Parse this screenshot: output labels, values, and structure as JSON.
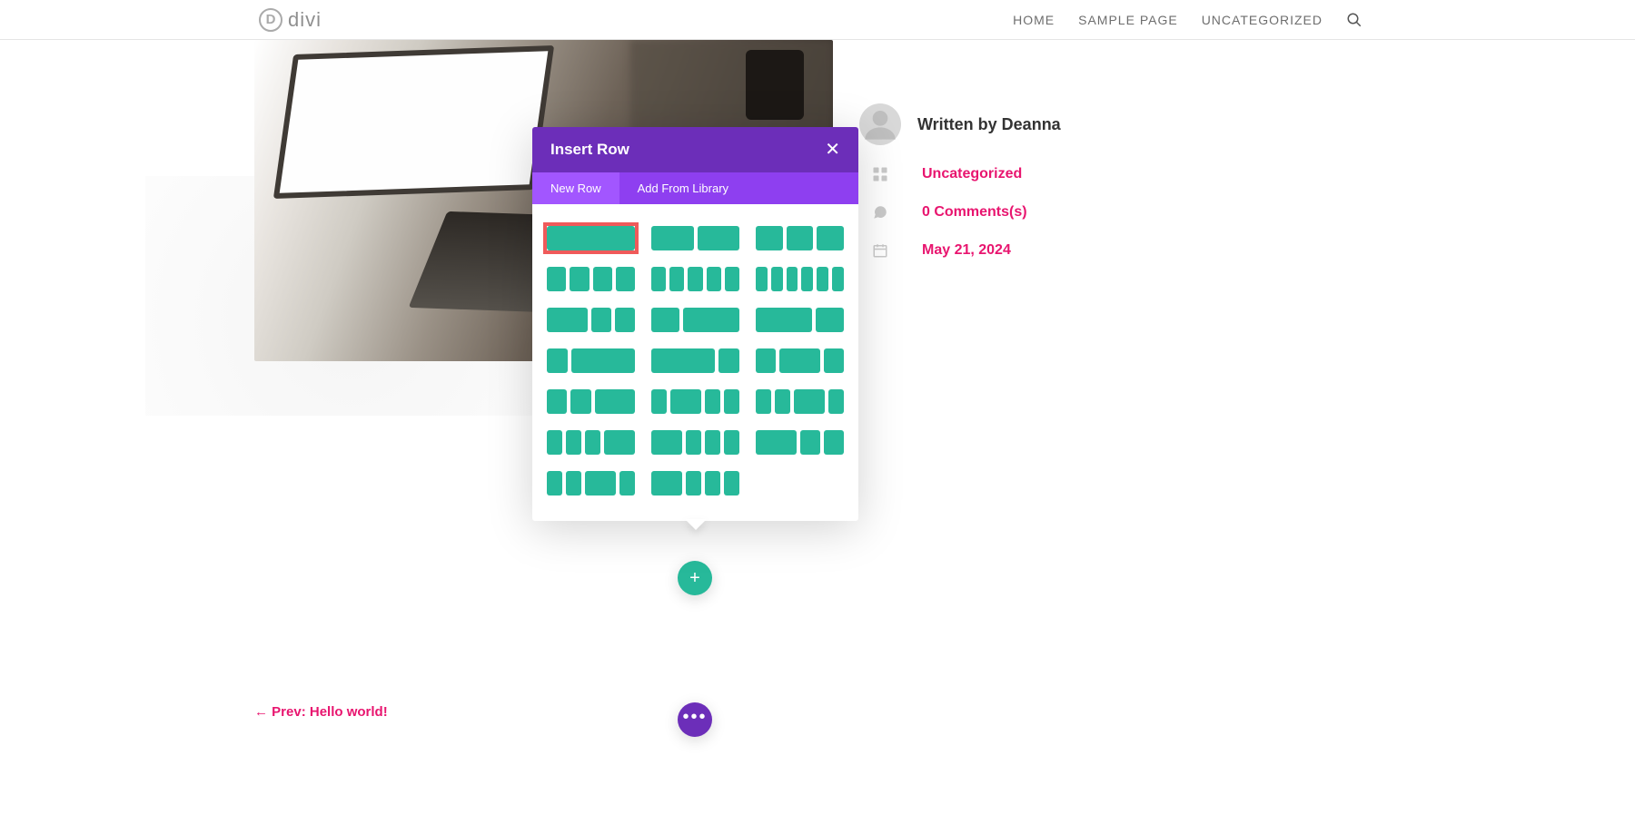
{
  "brand": {
    "icon_letter": "D",
    "name": "divi"
  },
  "nav": {
    "items": [
      {
        "label": "HOME"
      },
      {
        "label": "SAMPLE PAGE"
      },
      {
        "label": "UNCATEGORIZED"
      }
    ]
  },
  "modal": {
    "title": "Insert Row",
    "tabs": [
      {
        "label": "New Row",
        "active": true
      },
      {
        "label": "Add From Library",
        "active": false
      }
    ],
    "close_glyph": "✕",
    "colors": {
      "header_bg": "#6c2eb9",
      "tab_bg": "#8e3ff0",
      "tab_active_bg": "#a256ff",
      "cell_color": "#27b99a",
      "highlight_border": "#ef5a5a"
    },
    "layouts": [
      {
        "cols": [
          1
        ],
        "selected": true
      },
      {
        "cols": [
          1,
          1
        ]
      },
      {
        "cols": [
          1,
          1,
          1
        ]
      },
      {
        "cols": [
          1,
          1,
          1,
          1
        ]
      },
      {
        "cols": [
          1,
          1,
          1,
          1,
          1
        ]
      },
      {
        "cols": [
          1,
          1,
          1,
          1,
          1,
          1
        ]
      },
      {
        "cols": [
          2,
          1,
          1
        ]
      },
      {
        "cols": [
          1,
          2
        ]
      },
      {
        "cols": [
          2,
          1
        ]
      },
      {
        "cols": [
          1,
          3
        ]
      },
      {
        "cols": [
          3,
          1
        ]
      },
      {
        "cols": [
          1,
          2,
          1
        ]
      },
      {
        "cols": [
          1,
          1,
          2
        ]
      },
      {
        "cols": [
          1,
          2,
          1,
          1
        ]
      },
      {
        "cols": [
          1,
          1,
          2,
          1
        ]
      },
      {
        "cols": [
          1,
          1,
          1,
          2
        ]
      },
      {
        "cols": [
          2,
          1,
          1,
          1
        ]
      },
      {
        "cols": [
          2,
          1,
          1
        ]
      },
      {
        "cols": [
          1,
          1,
          2,
          1
        ]
      },
      {
        "cols": [
          2,
          1,
          1,
          1
        ]
      }
    ]
  },
  "fab": {
    "add_glyph": "+",
    "more_glyph": "•••"
  },
  "meta": {
    "written_by_prefix": "Written by ",
    "author": "Deanna",
    "category": "Uncategorized",
    "comments": "0 Comments(s)",
    "date": "May 21, 2024",
    "link_color": "#e8156f",
    "icon_color": "#c9c9c9"
  },
  "prev_link": {
    "text": "← Prev: Hello world!"
  }
}
